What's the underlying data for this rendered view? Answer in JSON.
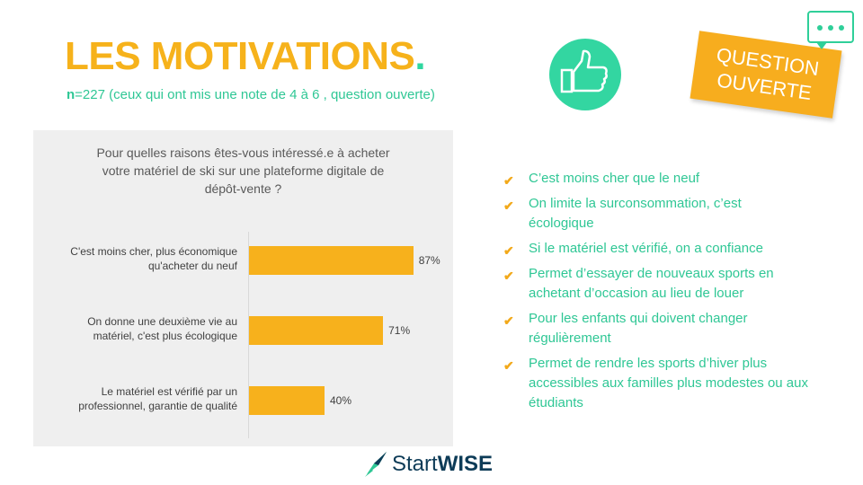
{
  "header": {
    "title": "LES MOTIVATIONS",
    "title_dot": ".",
    "subtitle_n": "n",
    "subtitle_rest": "=227 (ceux qui ont mis une note de 4 à 6 , question ouverte)"
  },
  "stamp": {
    "line1": "QUESTION",
    "line2": "OUVERTE"
  },
  "icons": {
    "thumb": "thumbs-up-icon",
    "bubble": "chat-bubble-icon",
    "check": "check-icon",
    "logo": "rocket-logo"
  },
  "colors": {
    "accent_orange": "#f6b21b",
    "accent_green": "#2fd7a0",
    "bar": "#f7b11c",
    "panel": "#efefef"
  },
  "chart_data": {
    "type": "bar",
    "orientation": "horizontal",
    "title_lines": [
      "Pour quelles raisons êtes-vous intéressé.e à acheter",
      "votre matériel de ski sur une plateforme digitale de",
      "dépôt-vente ?"
    ],
    "categories": [
      [
        "C'est moins cher, plus économique",
        "qu'acheter du neuf"
      ],
      [
        "On donne une deuxième vie au",
        "matériel, c'est plus écologique"
      ],
      [
        "Le matériel est vérifié par un",
        "professionnel, garantie de qualité"
      ]
    ],
    "values": [
      87,
      71,
      40
    ],
    "value_labels": [
      "87%",
      "71%",
      "40%"
    ],
    "unit": "%",
    "xlim": [
      0,
      100
    ],
    "grid": false,
    "legend": "none"
  },
  "reasons": [
    {
      "check": "✔",
      "text": "C’est moins cher que le neuf"
    },
    {
      "check": "✔",
      "text": "On limite la surconsommation, c’est écologique"
    },
    {
      "check": "✔",
      "text": "Si le matériel est vérifié, on a confiance"
    },
    {
      "check": "✔",
      "text": "Permet d’essayer de nouveaux sports en achetant d’occasion au lieu de louer"
    },
    {
      "check": "✔",
      "text": "Pour les enfants qui doivent changer régulièrement"
    },
    {
      "check": "✔",
      "text": "Permet de rendre les sports d’hiver plus accessibles aux familles plus modestes ou aux étudiants"
    }
  ],
  "logo": {
    "part1": "Start",
    "part2": "WISE"
  }
}
